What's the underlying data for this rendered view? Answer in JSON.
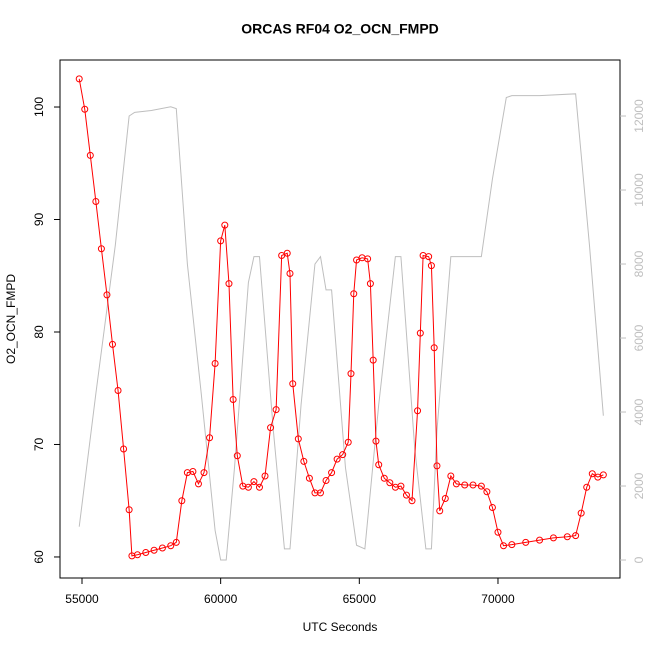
{
  "chart_data": {
    "type": "line",
    "title": "ORCAS RF04 O2_OCN_FMPD",
    "xlabel": "UTC Seconds",
    "ylabel": "O2_OCN_FMPD",
    "xlim": [
      54207,
      74400
    ],
    "xticks": [
      55000,
      60000,
      65000,
      70000
    ],
    "ylim": [
      58.13,
      104.18
    ],
    "yticks": [
      60,
      70,
      80,
      90,
      100
    ],
    "y2lim": [
      -486,
      13514
    ],
    "y2ticks": [
      0,
      2000,
      4000,
      6000,
      8000,
      10000,
      12000
    ],
    "series": [
      {
        "color": "#bebebe",
        "axis": "y2",
        "marker": false,
        "x": [
          54900,
          55500,
          56200,
          56700,
          56900,
          57500,
          58200,
          58400,
          58800,
          59300,
          59800,
          60000,
          60200,
          60500,
          61000,
          61200,
          61400,
          61900,
          62300,
          62500,
          62900,
          63400,
          63600,
          63800,
          64000,
          64500,
          64900,
          65200,
          65700,
          66300,
          66500,
          67000,
          67400,
          67600,
          67800,
          68300,
          69100,
          69400,
          69800,
          70300,
          70500,
          71500,
          72800,
          73300,
          73800
        ],
        "values": [
          900,
          4500,
          8500,
          12000,
          12100,
          12150,
          12250,
          12200,
          8000,
          4500,
          800,
          0,
          0,
          2500,
          7500,
          8200,
          8200,
          3500,
          300,
          300,
          4200,
          8000,
          8200,
          7300,
          7300,
          2500,
          400,
          300,
          4200,
          8200,
          8200,
          3000,
          300,
          300,
          3500,
          8200,
          8200,
          8200,
          10300,
          12500,
          12550,
          12550,
          12600,
          8500,
          3900
        ]
      },
      {
        "color": "#ff0000",
        "marker": true,
        "x": [
          54900,
          55100,
          55300,
          55500,
          55700,
          55900,
          56100,
          56300,
          56500,
          56700,
          56800,
          57000,
          57300,
          57600,
          57900,
          58200,
          58400,
          58600,
          58800,
          59000,
          59200,
          59400,
          59600,
          59800,
          60000,
          60150,
          60300,
          60450,
          60600,
          60800,
          61000,
          61200,
          61400,
          61600,
          61800,
          62000,
          62200,
          62400,
          62500,
          62600,
          62800,
          63000,
          63200,
          63400,
          63600,
          63800,
          64000,
          64200,
          64400,
          64600,
          64700,
          64800,
          64900,
          65100,
          65300,
          65400,
          65500,
          65600,
          65700,
          65900,
          66100,
          66300,
          66500,
          66700,
          66900,
          67100,
          67200,
          67300,
          67500,
          67600,
          67700,
          67800,
          67900,
          68100,
          68300,
          68500,
          68800,
          69100,
          69400,
          69600,
          69800,
          70000,
          70200,
          70500,
          71000,
          71500,
          72000,
          72500,
          72800,
          73000,
          73200,
          73400,
          73600,
          73800
        ],
        "values": [
          102.5,
          99.8,
          95.7,
          91.6,
          87.4,
          83.3,
          78.9,
          74.8,
          69.6,
          64.2,
          60.1,
          60.2,
          60.4,
          60.6,
          60.8,
          61.0,
          61.3,
          65,
          67.5,
          67.6,
          66.5,
          67.5,
          70.6,
          77.2,
          88.1,
          89.5,
          84.3,
          74,
          69,
          66.3,
          66.2,
          66.7,
          66.2,
          67.2,
          71.5,
          73.1,
          86.8,
          87,
          85.2,
          75.4,
          70.5,
          68.5,
          67,
          65.7,
          65.7,
          66.8,
          67.5,
          68.7,
          69.1,
          70.2,
          76.3,
          83.4,
          86.4,
          86.6,
          86.5,
          84.3,
          77.5,
          70.3,
          68.2,
          67,
          66.6,
          66.2,
          66.3,
          65.5,
          65,
          73,
          79.9,
          86.8,
          86.7,
          85.9,
          78.6,
          68.1,
          64.1,
          65.2,
          67.2,
          66.5,
          66.4,
          66.4,
          66.3,
          65.8,
          64.4,
          62.2,
          61.0,
          61.1,
          61.3,
          61.5,
          61.7,
          61.8,
          61.9,
          63.9,
          66.2,
          67.4,
          67.1,
          67.3
        ]
      }
    ]
  }
}
